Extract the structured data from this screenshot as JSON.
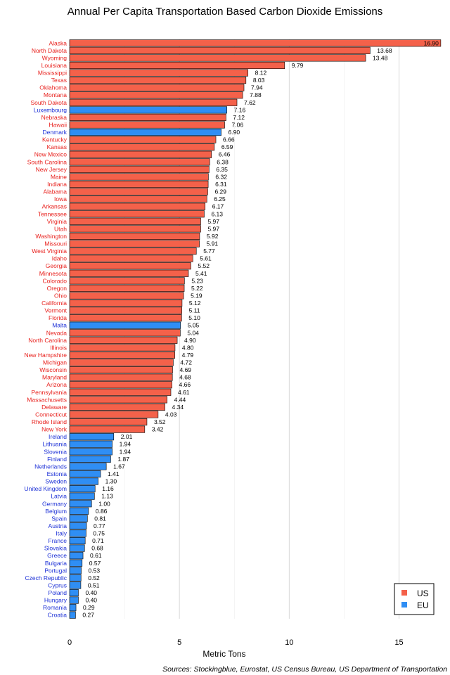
{
  "chart_data": {
    "type": "bar",
    "orientation": "horizontal",
    "title": "Annual Per Capita Transportation Based Carbon Dioxide Emissions",
    "xlabel": "Metric Tons",
    "ylabel": "",
    "xlim": [
      0,
      17
    ],
    "xticks": [
      "0",
      "5",
      "10",
      "15"
    ],
    "grid": true,
    "source": "Sources: Stockingblue, Eurostat, US Census Bureau, US Department of Transportation",
    "legend": {
      "position": "bottom-right",
      "entries": [
        {
          "label": "US",
          "color": "#f4614a"
        },
        {
          "label": "EU",
          "color": "#2f8ef4"
        }
      ]
    },
    "colors": {
      "US": "#f4614a",
      "EU": "#2f8ef4",
      "US_label": "#e8201c",
      "EU_label": "#1b2fd6"
    },
    "bars": [
      {
        "name": "Alaska",
        "group": "US",
        "value": 16.9,
        "label": "16.90"
      },
      {
        "name": "North Dakota",
        "group": "US",
        "value": 13.68,
        "label": "13.68"
      },
      {
        "name": "Wyoming",
        "group": "US",
        "value": 13.48,
        "label": "13.48"
      },
      {
        "name": "Louisiana",
        "group": "US",
        "value": 9.79,
        "label": "9.79"
      },
      {
        "name": "Mississippi",
        "group": "US",
        "value": 8.12,
        "label": "8.12"
      },
      {
        "name": "Texas",
        "group": "US",
        "value": 8.03,
        "label": "8.03"
      },
      {
        "name": "Oklahoma",
        "group": "US",
        "value": 7.94,
        "label": "7.94"
      },
      {
        "name": "Montana",
        "group": "US",
        "value": 7.88,
        "label": "7.88"
      },
      {
        "name": "South Dakota",
        "group": "US",
        "value": 7.62,
        "label": "7.62"
      },
      {
        "name": "Luxembourg",
        "group": "EU",
        "value": 7.16,
        "label": "7.16"
      },
      {
        "name": "Nebraska",
        "group": "US",
        "value": 7.12,
        "label": "7.12"
      },
      {
        "name": "Hawaii",
        "group": "US",
        "value": 7.06,
        "label": "7.06"
      },
      {
        "name": "Denmark",
        "group": "EU",
        "value": 6.9,
        "label": "6.90"
      },
      {
        "name": "Kentucky",
        "group": "US",
        "value": 6.66,
        "label": "6.66"
      },
      {
        "name": "Kansas",
        "group": "US",
        "value": 6.59,
        "label": "6.59"
      },
      {
        "name": "New Mexico",
        "group": "US",
        "value": 6.46,
        "label": "6.46"
      },
      {
        "name": "South Carolina",
        "group": "US",
        "value": 6.38,
        "label": "6.38"
      },
      {
        "name": "New Jersey",
        "group": "US",
        "value": 6.35,
        "label": "6.35"
      },
      {
        "name": "Maine",
        "group": "US",
        "value": 6.32,
        "label": "6.32"
      },
      {
        "name": "Indiana",
        "group": "US",
        "value": 6.31,
        "label": "6.31"
      },
      {
        "name": "Alabama",
        "group": "US",
        "value": 6.29,
        "label": "6.29"
      },
      {
        "name": "Iowa",
        "group": "US",
        "value": 6.25,
        "label": "6.25"
      },
      {
        "name": "Arkansas",
        "group": "US",
        "value": 6.17,
        "label": "6.17"
      },
      {
        "name": "Tennessee",
        "group": "US",
        "value": 6.13,
        "label": "6.13"
      },
      {
        "name": "Virginia",
        "group": "US",
        "value": 5.97,
        "label": "5.97"
      },
      {
        "name": "Utah",
        "group": "US",
        "value": 5.97,
        "label": "5.97"
      },
      {
        "name": "Washington",
        "group": "US",
        "value": 5.92,
        "label": "5.92"
      },
      {
        "name": "Missouri",
        "group": "US",
        "value": 5.91,
        "label": "5.91"
      },
      {
        "name": "West Virginia",
        "group": "US",
        "value": 5.77,
        "label": "5.77"
      },
      {
        "name": "Idaho",
        "group": "US",
        "value": 5.61,
        "label": "5.61"
      },
      {
        "name": "Georgia",
        "group": "US",
        "value": 5.52,
        "label": "5.52"
      },
      {
        "name": "Minnesota",
        "group": "US",
        "value": 5.41,
        "label": "5.41"
      },
      {
        "name": "Colorado",
        "group": "US",
        "value": 5.23,
        "label": "5.23"
      },
      {
        "name": "Oregon",
        "group": "US",
        "value": 5.22,
        "label": "5.22"
      },
      {
        "name": "Ohio",
        "group": "US",
        "value": 5.19,
        "label": "5.19"
      },
      {
        "name": "California",
        "group": "US",
        "value": 5.12,
        "label": "5.12"
      },
      {
        "name": "Vermont",
        "group": "US",
        "value": 5.11,
        "label": "5.11"
      },
      {
        "name": "Florida",
        "group": "US",
        "value": 5.1,
        "label": "5.10"
      },
      {
        "name": "Malta",
        "group": "EU",
        "value": 5.05,
        "label": "5.05"
      },
      {
        "name": "Nevada",
        "group": "US",
        "value": 5.04,
        "label": "5.04"
      },
      {
        "name": "North Carolina",
        "group": "US",
        "value": 4.9,
        "label": "4.90"
      },
      {
        "name": "Illinois",
        "group": "US",
        "value": 4.8,
        "label": "4.80"
      },
      {
        "name": "New Hampshire",
        "group": "US",
        "value": 4.79,
        "label": "4.79"
      },
      {
        "name": "Michigan",
        "group": "US",
        "value": 4.72,
        "label": "4.72"
      },
      {
        "name": "Wisconsin",
        "group": "US",
        "value": 4.69,
        "label": "4.69"
      },
      {
        "name": "Maryland",
        "group": "US",
        "value": 4.68,
        "label": "4.68"
      },
      {
        "name": "Arizona",
        "group": "US",
        "value": 4.66,
        "label": "4.66"
      },
      {
        "name": "Pennsylvania",
        "group": "US",
        "value": 4.61,
        "label": "4.61"
      },
      {
        "name": "Massachusetts",
        "group": "US",
        "value": 4.44,
        "label": "4.44"
      },
      {
        "name": "Delaware",
        "group": "US",
        "value": 4.34,
        "label": "4.34"
      },
      {
        "name": "Connecticut",
        "group": "US",
        "value": 4.03,
        "label": "4.03"
      },
      {
        "name": "Rhode Island",
        "group": "US",
        "value": 3.52,
        "label": "3.52"
      },
      {
        "name": "New York",
        "group": "US",
        "value": 3.42,
        "label": "3.42"
      },
      {
        "name": "Ireland",
        "group": "EU",
        "value": 2.01,
        "label": "2.01"
      },
      {
        "name": "Lithuania",
        "group": "EU",
        "value": 1.94,
        "label": "1.94"
      },
      {
        "name": "Slovenia",
        "group": "EU",
        "value": 1.94,
        "label": "1.94"
      },
      {
        "name": "Finland",
        "group": "EU",
        "value": 1.87,
        "label": "1.87"
      },
      {
        "name": "Netherlands",
        "group": "EU",
        "value": 1.67,
        "label": "1.67"
      },
      {
        "name": "Estonia",
        "group": "EU",
        "value": 1.41,
        "label": "1.41"
      },
      {
        "name": "Sweden",
        "group": "EU",
        "value": 1.3,
        "label": "1.30"
      },
      {
        "name": "United Kingdom",
        "group": "EU",
        "value": 1.16,
        "label": "1.16"
      },
      {
        "name": "Latvia",
        "group": "EU",
        "value": 1.13,
        "label": "1.13"
      },
      {
        "name": "Germany",
        "group": "EU",
        "value": 1.0,
        "label": "1.00"
      },
      {
        "name": "Belgium",
        "group": "EU",
        "value": 0.86,
        "label": "0.86"
      },
      {
        "name": "Spain",
        "group": "EU",
        "value": 0.81,
        "label": "0.81"
      },
      {
        "name": "Austria",
        "group": "EU",
        "value": 0.77,
        "label": "0.77"
      },
      {
        "name": "Italy",
        "group": "EU",
        "value": 0.75,
        "label": "0.75"
      },
      {
        "name": "France",
        "group": "EU",
        "value": 0.71,
        "label": "0.71"
      },
      {
        "name": "Slovakia",
        "group": "EU",
        "value": 0.68,
        "label": "0.68"
      },
      {
        "name": "Greece",
        "group": "EU",
        "value": 0.61,
        "label": "0.61"
      },
      {
        "name": "Bulgaria",
        "group": "EU",
        "value": 0.57,
        "label": "0.57"
      },
      {
        "name": "Portugal",
        "group": "EU",
        "value": 0.53,
        "label": "0.53"
      },
      {
        "name": "Czech Republic",
        "group": "EU",
        "value": 0.52,
        "label": "0.52"
      },
      {
        "name": "Cyprus",
        "group": "EU",
        "value": 0.51,
        "label": "0.51"
      },
      {
        "name": "Poland",
        "group": "EU",
        "value": 0.4,
        "label": "0.40"
      },
      {
        "name": "Hungary",
        "group": "EU",
        "value": 0.4,
        "label": "0.40"
      },
      {
        "name": "Romania",
        "group": "EU",
        "value": 0.29,
        "label": "0.29"
      },
      {
        "name": "Croatia",
        "group": "EU",
        "value": 0.27,
        "label": "0.27"
      }
    ]
  }
}
